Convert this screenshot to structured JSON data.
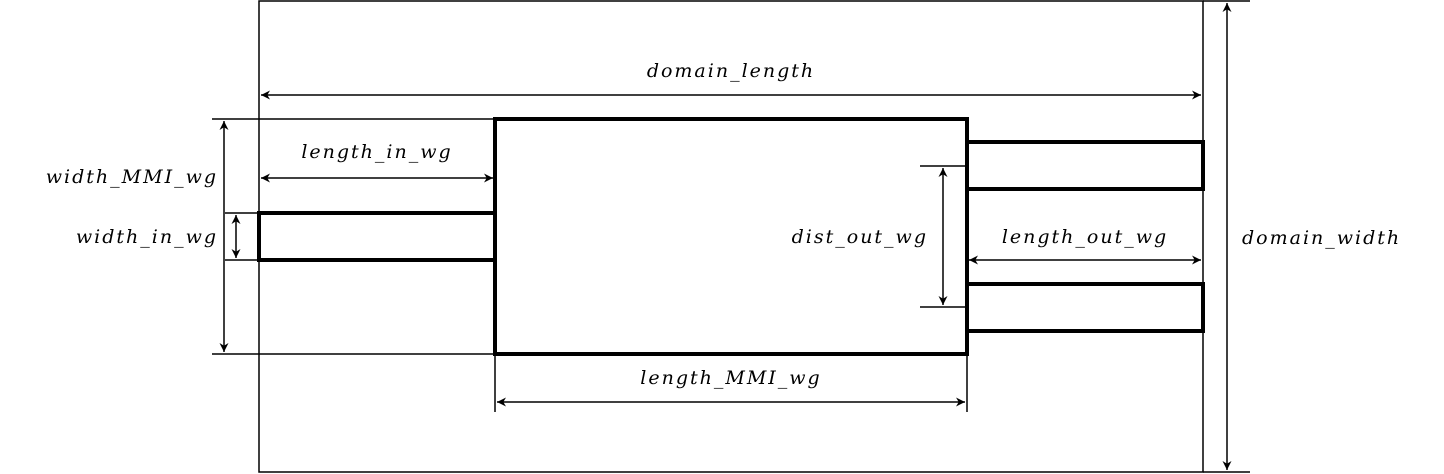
{
  "labels": {
    "domain_length": "domain_length",
    "domain_width": "domain_width",
    "width_mmi_wg": "width_MMI_wg",
    "width_in_wg": "width_in_wg",
    "length_in_wg": "length_in_wg",
    "length_mmi_wg": "length_MMI_wg",
    "dist_out_wg": "dist_out_wg",
    "length_out_wg": "length_out_wg"
  },
  "colors": {
    "line": "#000000",
    "background": "#ffffff"
  }
}
